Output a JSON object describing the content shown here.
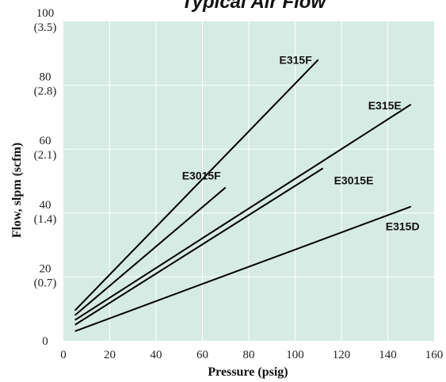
{
  "chart_data": {
    "type": "line",
    "title": "Typical Air Flow",
    "xlabel": "Pressure (psig)",
    "ylabel": "Flow, slpm (scfm)",
    "xlim": [
      0,
      160
    ],
    "ylim": [
      0,
      100
    ],
    "x_ticks": [
      "0",
      "20",
      "40",
      "60",
      "80",
      "100",
      "120",
      "140",
      "160"
    ],
    "y_ticks": [
      {
        "value": 0,
        "label": "0",
        "sub": ""
      },
      {
        "value": 20,
        "label": "20",
        "sub": "(0.7)"
      },
      {
        "value": 40,
        "label": "40",
        "sub": "(1.4)"
      },
      {
        "value": 60,
        "label": "60",
        "sub": "(2.1)"
      },
      {
        "value": 80,
        "label": "80",
        "sub": "(2.8)"
      },
      {
        "value": 100,
        "label": "100",
        "sub": "(3.5)"
      }
    ],
    "grid": true,
    "colors": {
      "plot_background": "#d6ebe4",
      "grid": "#ffffff",
      "line": "#000000"
    },
    "series": [
      {
        "name": "E315F",
        "x": [
          5,
          110
        ],
        "y": [
          9.5,
          88
        ]
      },
      {
        "name": "E3015F",
        "x": [
          5,
          70
        ],
        "y": [
          8,
          48
        ]
      },
      {
        "name": "E315E",
        "x": [
          5,
          150
        ],
        "y": [
          6.5,
          74
        ]
      },
      {
        "name": "E3015E",
        "x": [
          5,
          112
        ],
        "y": [
          5,
          54
        ]
      },
      {
        "name": "E315D",
        "x": [
          5,
          150
        ],
        "y": [
          3,
          42
        ]
      }
    ]
  }
}
